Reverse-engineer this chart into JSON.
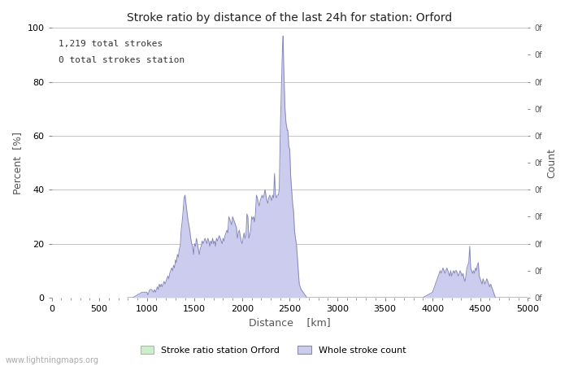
{
  "title": "Stroke ratio by distance of the last 24h for station: Orford",
  "xlabel": "Distance  [km]",
  "ylabel": "Percent  [%]",
  "ylabel_right": "Count",
  "annotation_line1": "1,219 total strokes",
  "annotation_line2": "0 total strokes station",
  "xlim": [
    0,
    5000
  ],
  "ylim": [
    0,
    100
  ],
  "xticks": [
    0,
    500,
    1000,
    1500,
    2000,
    2500,
    3000,
    3500,
    4000,
    4500,
    5000
  ],
  "yticks_left": [
    0,
    20,
    40,
    60,
    80,
    100
  ],
  "yticks_right_positions": [
    0,
    10,
    20,
    30,
    40,
    50,
    60,
    70,
    80,
    90,
    100
  ],
  "yticks_right_labels": [
    "0f",
    "0f",
    "0f",
    "0f",
    "0f",
    "0f",
    "0f",
    "0f",
    "0f",
    "0f",
    "0f"
  ],
  "watermark": "www.lightningmaps.org",
  "legend_station_label": "Stroke ratio station Orford",
  "legend_whole_label": "Whole stroke count",
  "station_fill_color": "#cceecc",
  "station_line_color": "#8899bb",
  "whole_fill_color": "#ccccee",
  "whole_line_color": "#8888bb",
  "background_color": "#ffffff",
  "grid_color": "#bbbbbb",
  "whole_stroke_data": [
    [
      800,
      0
    ],
    [
      850,
      0
    ],
    [
      900,
      1
    ],
    [
      950,
      2
    ],
    [
      1000,
      2
    ],
    [
      1010,
      1
    ],
    [
      1020,
      2
    ],
    [
      1030,
      3
    ],
    [
      1050,
      3
    ],
    [
      1070,
      2
    ],
    [
      1080,
      3
    ],
    [
      1090,
      2
    ],
    [
      1100,
      3
    ],
    [
      1110,
      4
    ],
    [
      1120,
      3
    ],
    [
      1130,
      5
    ],
    [
      1140,
      4
    ],
    [
      1150,
      5
    ],
    [
      1160,
      4
    ],
    [
      1170,
      5
    ],
    [
      1180,
      6
    ],
    [
      1190,
      5
    ],
    [
      1200,
      6
    ],
    [
      1210,
      7
    ],
    [
      1220,
      8
    ],
    [
      1230,
      7
    ],
    [
      1240,
      9
    ],
    [
      1250,
      10
    ],
    [
      1260,
      11
    ],
    [
      1270,
      10
    ],
    [
      1280,
      12
    ],
    [
      1290,
      11
    ],
    [
      1300,
      14
    ],
    [
      1310,
      13
    ],
    [
      1320,
      16
    ],
    [
      1330,
      15
    ],
    [
      1340,
      18
    ],
    [
      1350,
      19
    ],
    [
      1360,
      25
    ],
    [
      1370,
      28
    ],
    [
      1380,
      32
    ],
    [
      1390,
      37
    ],
    [
      1400,
      38
    ],
    [
      1410,
      35
    ],
    [
      1420,
      32
    ],
    [
      1430,
      29
    ],
    [
      1440,
      27
    ],
    [
      1450,
      25
    ],
    [
      1460,
      22
    ],
    [
      1470,
      20
    ],
    [
      1480,
      19
    ],
    [
      1490,
      16
    ],
    [
      1500,
      20
    ],
    [
      1510,
      19
    ],
    [
      1520,
      22
    ],
    [
      1530,
      20
    ],
    [
      1540,
      18
    ],
    [
      1550,
      16
    ],
    [
      1560,
      18
    ],
    [
      1570,
      19
    ],
    [
      1580,
      21
    ],
    [
      1590,
      20
    ],
    [
      1600,
      21
    ],
    [
      1610,
      22
    ],
    [
      1620,
      21
    ],
    [
      1630,
      20
    ],
    [
      1640,
      22
    ],
    [
      1650,
      21
    ],
    [
      1660,
      19
    ],
    [
      1670,
      21
    ],
    [
      1680,
      20
    ],
    [
      1690,
      22
    ],
    [
      1700,
      20
    ],
    [
      1710,
      21
    ],
    [
      1720,
      19
    ],
    [
      1730,
      22
    ],
    [
      1740,
      21
    ],
    [
      1750,
      22
    ],
    [
      1760,
      23
    ],
    [
      1770,
      22
    ],
    [
      1780,
      21
    ],
    [
      1790,
      20
    ],
    [
      1800,
      22
    ],
    [
      1810,
      21
    ],
    [
      1820,
      23
    ],
    [
      1830,
      24
    ],
    [
      1840,
      25
    ],
    [
      1850,
      24
    ],
    [
      1860,
      30
    ],
    [
      1870,
      29
    ],
    [
      1880,
      28
    ],
    [
      1890,
      27
    ],
    [
      1900,
      30
    ],
    [
      1910,
      29
    ],
    [
      1920,
      28
    ],
    [
      1930,
      27
    ],
    [
      1940,
      26
    ],
    [
      1950,
      22
    ],
    [
      1960,
      24
    ],
    [
      1970,
      25
    ],
    [
      1980,
      23
    ],
    [
      1990,
      21
    ],
    [
      2000,
      20
    ],
    [
      2010,
      22
    ],
    [
      2020,
      24
    ],
    [
      2030,
      22
    ],
    [
      2040,
      23
    ],
    [
      2050,
      31
    ],
    [
      2060,
      30
    ],
    [
      2070,
      22
    ],
    [
      2080,
      23
    ],
    [
      2090,
      25
    ],
    [
      2100,
      30
    ],
    [
      2110,
      29
    ],
    [
      2120,
      30
    ],
    [
      2130,
      28
    ],
    [
      2140,
      31
    ],
    [
      2150,
      38
    ],
    [
      2160,
      37
    ],
    [
      2170,
      35
    ],
    [
      2180,
      34
    ],
    [
      2190,
      36
    ],
    [
      2200,
      37
    ],
    [
      2210,
      38
    ],
    [
      2220,
      37
    ],
    [
      2230,
      38
    ],
    [
      2240,
      40
    ],
    [
      2250,
      38
    ],
    [
      2260,
      36
    ],
    [
      2270,
      35
    ],
    [
      2280,
      37
    ],
    [
      2290,
      38
    ],
    [
      2300,
      37
    ],
    [
      2310,
      36
    ],
    [
      2320,
      38
    ],
    [
      2330,
      37
    ],
    [
      2340,
      46
    ],
    [
      2350,
      38
    ],
    [
      2360,
      37
    ],
    [
      2370,
      38
    ],
    [
      2380,
      38
    ],
    [
      2390,
      40
    ],
    [
      2400,
      60
    ],
    [
      2410,
      75
    ],
    [
      2420,
      87
    ],
    [
      2425,
      94
    ],
    [
      2430,
      97
    ],
    [
      2435,
      88
    ],
    [
      2440,
      82
    ],
    [
      2445,
      75
    ],
    [
      2450,
      70
    ],
    [
      2455,
      68
    ],
    [
      2460,
      65
    ],
    [
      2465,
      64
    ],
    [
      2470,
      63
    ],
    [
      2475,
      62
    ],
    [
      2480,
      62
    ],
    [
      2485,
      59
    ],
    [
      2490,
      56
    ],
    [
      2500,
      55
    ],
    [
      2510,
      45
    ],
    [
      2520,
      40
    ],
    [
      2530,
      35
    ],
    [
      2540,
      32
    ],
    [
      2550,
      25
    ],
    [
      2560,
      22
    ],
    [
      2570,
      20
    ],
    [
      2580,
      15
    ],
    [
      2590,
      10
    ],
    [
      2600,
      5
    ],
    [
      2620,
      3
    ],
    [
      2640,
      2
    ],
    [
      2660,
      1
    ],
    [
      2680,
      0
    ],
    [
      2700,
      0
    ],
    [
      3900,
      0
    ],
    [
      3950,
      1
    ],
    [
      4000,
      2
    ],
    [
      4050,
      7
    ],
    [
      4060,
      8
    ],
    [
      4070,
      9
    ],
    [
      4080,
      10
    ],
    [
      4090,
      9
    ],
    [
      4100,
      10
    ],
    [
      4110,
      11
    ],
    [
      4120,
      10
    ],
    [
      4130,
      9
    ],
    [
      4140,
      10
    ],
    [
      4150,
      11
    ],
    [
      4160,
      10
    ],
    [
      4170,
      9
    ],
    [
      4180,
      8
    ],
    [
      4190,
      10
    ],
    [
      4200,
      8
    ],
    [
      4210,
      9
    ],
    [
      4220,
      10
    ],
    [
      4230,
      9
    ],
    [
      4240,
      10
    ],
    [
      4250,
      10
    ],
    [
      4260,
      9
    ],
    [
      4270,
      8
    ],
    [
      4280,
      9
    ],
    [
      4290,
      10
    ],
    [
      4300,
      9
    ],
    [
      4310,
      8
    ],
    [
      4320,
      9
    ],
    [
      4330,
      7
    ],
    [
      4340,
      6
    ],
    [
      4350,
      8
    ],
    [
      4360,
      11
    ],
    [
      4370,
      12
    ],
    [
      4380,
      13
    ],
    [
      4390,
      19
    ],
    [
      4400,
      11
    ],
    [
      4410,
      10
    ],
    [
      4420,
      9
    ],
    [
      4430,
      10
    ],
    [
      4440,
      9
    ],
    [
      4450,
      11
    ],
    [
      4460,
      10
    ],
    [
      4470,
      12
    ],
    [
      4480,
      13
    ],
    [
      4490,
      8
    ],
    [
      4500,
      7
    ],
    [
      4510,
      6
    ],
    [
      4520,
      5
    ],
    [
      4530,
      7
    ],
    [
      4540,
      6
    ],
    [
      4550,
      5
    ],
    [
      4560,
      6
    ],
    [
      4570,
      7
    ],
    [
      4580,
      6
    ],
    [
      4590,
      5
    ],
    [
      4600,
      4
    ],
    [
      4610,
      5
    ],
    [
      4620,
      4
    ],
    [
      4630,
      3
    ],
    [
      4640,
      2
    ],
    [
      4650,
      1
    ],
    [
      4660,
      0
    ],
    [
      5000,
      0
    ]
  ],
  "station_stroke_data": []
}
